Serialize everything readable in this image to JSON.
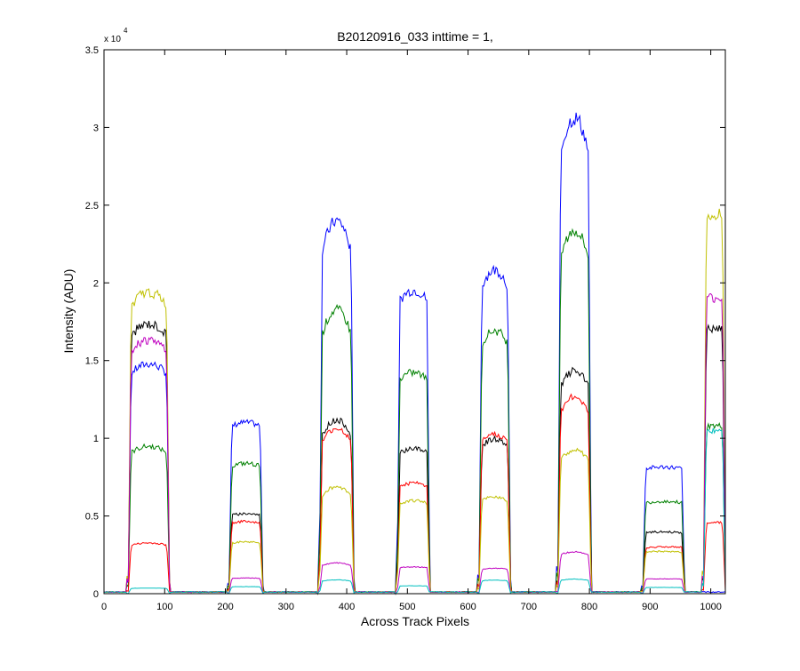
{
  "chart_data": {
    "type": "line",
    "title": "B20120916_033 inttime = 1,",
    "xlabel": "Across Track Pixels",
    "ylabel": "Intensity (ADU)",
    "y_exponent_label": "x 10",
    "y_exponent_power": "4",
    "xlim": [
      0,
      1024
    ],
    "ylim": [
      0,
      35000
    ],
    "x_ticks": [
      0,
      100,
      200,
      300,
      400,
      500,
      600,
      700,
      800,
      900,
      1000
    ],
    "y_ticks": [
      0,
      5000,
      10000,
      15000,
      20000,
      25000,
      30000,
      35000
    ],
    "y_tick_labels": [
      "0",
      "0.5",
      "1",
      "1.5",
      "2",
      "2.5",
      "3",
      "3.5"
    ],
    "grid": false,
    "regions": [
      {
        "start": 40,
        "end": 108
      },
      {
        "start": 206,
        "end": 262
      },
      {
        "start": 355,
        "end": 412
      },
      {
        "start": 483,
        "end": 537
      },
      {
        "start": 618,
        "end": 670
      },
      {
        "start": 748,
        "end": 803
      },
      {
        "start": 888,
        "end": 957
      },
      {
        "start": 988,
        "end": 1024
      }
    ],
    "series": [
      {
        "color": "#0000ff",
        "levels": [
          14500,
          10900,
          23000,
          19200,
          20300,
          29500,
          8100,
          0
        ]
      },
      {
        "color": "#008000",
        "levels": [
          9300,
          8300,
          17500,
          14000,
          16500,
          22500,
          5900,
          10800
        ]
      },
      {
        "color": "#000000",
        "levels": [
          17000,
          5100,
          10700,
          9200,
          9700,
          13800,
          3950,
          17000
        ]
      },
      {
        "color": "#ff0000",
        "levels": [
          3200,
          4600,
          10200,
          7000,
          10000,
          12200,
          3000,
          4600
        ]
      },
      {
        "color": "#c0c000",
        "levels": [
          19000,
          3300,
          6600,
          5900,
          6100,
          8900,
          2700,
          24500
        ]
      },
      {
        "color": "#bf00bf",
        "levels": [
          16000,
          1000,
          1900,
          1700,
          1600,
          2600,
          950,
          19000
        ]
      },
      {
        "color": "#00bfbf",
        "levels": [
          350,
          450,
          850,
          500,
          850,
          900,
          400,
          10500
        ]
      }
    ]
  }
}
